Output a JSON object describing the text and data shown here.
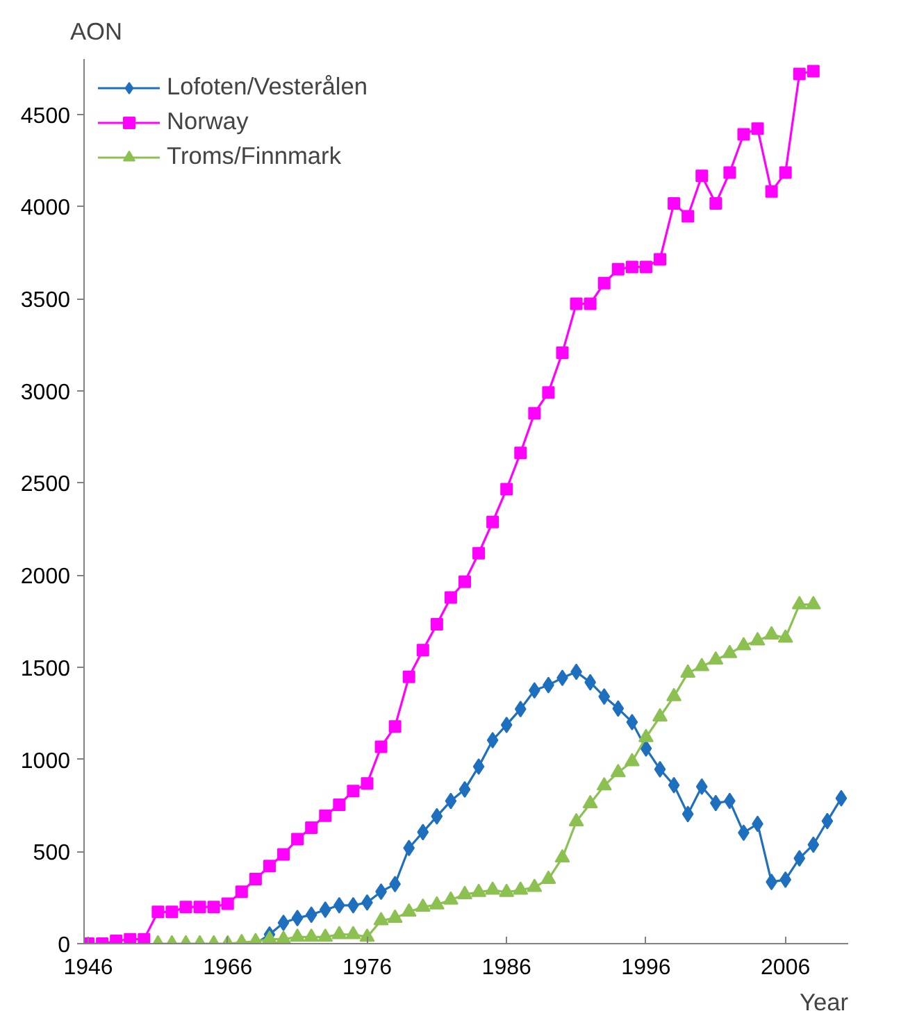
{
  "chart_data": {
    "type": "line",
    "xlabel": "Year",
    "ylabel": "AON",
    "categories": [
      "1946",
      null,
      null,
      null,
      null,
      null,
      null,
      null,
      null,
      null,
      "1966",
      null,
      null,
      null,
      null,
      null,
      null,
      null,
      null,
      null,
      "1976",
      null,
      null,
      null,
      null,
      null,
      null,
      null,
      null,
      null,
      "1986",
      null,
      null,
      null,
      null,
      null,
      null,
      null,
      null,
      null,
      "1996",
      null,
      null,
      null,
      null,
      null,
      null,
      null,
      null,
      null,
      "2006",
      null,
      null,
      null,
      null
    ],
    "ylim": [
      0,
      4800
    ],
    "yticks": [
      0,
      500,
      1000,
      1500,
      2000,
      2500,
      3000,
      3500,
      4000,
      4500
    ],
    "grid": false,
    "legend": "top left",
    "line_style": "solid",
    "series": [
      {
        "name": "Lofoten/Vesterålen",
        "color": "#1f6fbf",
        "marker": "diamond",
        "values": [
          null,
          null,
          null,
          null,
          null,
          null,
          null,
          null,
          null,
          null,
          null,
          0,
          0,
          50,
          113,
          139,
          157,
          184,
          208,
          208,
          223,
          282,
          323,
          519,
          605,
          691,
          774,
          837,
          961,
          1104,
          1187,
          1273,
          1374,
          1403,
          1442,
          1475,
          1418,
          1341,
          1276,
          1202,
          1059,
          946,
          860,
          703,
          852,
          763,
          774,
          602,
          650,
          335,
          347,
          463,
          537,
          665,
          789
        ]
      },
      {
        "name": "Norway",
        "color": "#ff00ff",
        "marker": "square",
        "values": [
          0,
          0,
          15,
          24,
          24,
          172,
          172,
          199,
          199,
          199,
          217,
          282,
          350,
          421,
          484,
          567,
          629,
          694,
          754,
          828,
          869,
          1068,
          1178,
          1448,
          1593,
          1733,
          1878,
          1964,
          2118,
          2288,
          2466,
          2663,
          2878,
          2991,
          3206,
          3472,
          3472,
          3584,
          3659,
          3672,
          3672,
          3713,
          4016,
          3947,
          4166,
          4016,
          4184,
          4391,
          4422,
          4081,
          4184,
          4719,
          4734,
          null,
          null
        ]
      },
      {
        "name": "Troms/Finnmark",
        "color": "#8cc152",
        "marker": "triangle",
        "values": [
          null,
          null,
          null,
          null,
          null,
          0,
          0,
          0,
          0,
          0,
          0,
          6,
          12,
          24,
          24,
          36,
          36,
          36,
          50,
          50,
          36,
          125,
          139,
          172,
          199,
          211,
          237,
          267,
          279,
          291,
          279,
          291,
          306,
          350,
          466,
          662,
          760,
          857,
          929,
          988,
          1119,
          1231,
          1341,
          1469,
          1504,
          1540,
          1575,
          1617,
          1644,
          1676,
          1659,
          1840,
          1840,
          null,
          null
        ]
      }
    ]
  }
}
